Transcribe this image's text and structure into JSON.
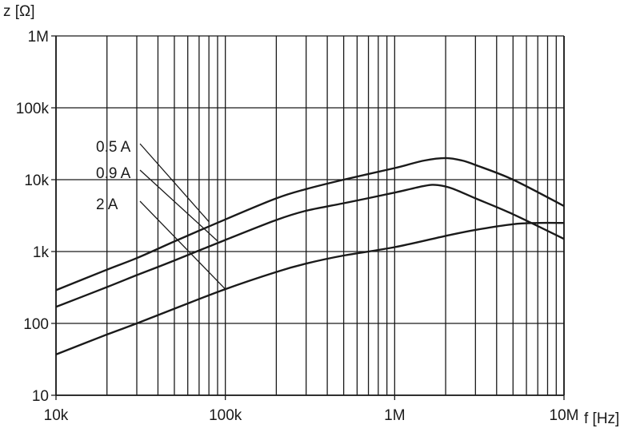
{
  "chart_data": {
    "type": "line",
    "x_scale": "log",
    "y_scale": "log",
    "xlabel": "f [Hz]",
    "ylabel": "z [Ω]",
    "xlim": [
      10000,
      10000000
    ],
    "ylim": [
      10,
      1000000
    ],
    "x_ticks": [
      {
        "value": 10000,
        "label": "10k"
      },
      {
        "value": 100000,
        "label": "100k"
      },
      {
        "value": 1000000,
        "label": "1M"
      },
      {
        "value": 10000000,
        "label": "10M"
      }
    ],
    "y_ticks": [
      {
        "value": 10,
        "label": "10"
      },
      {
        "value": 100,
        "label": "100"
      },
      {
        "value": 1000,
        "label": "1k"
      },
      {
        "value": 10000,
        "label": "10k"
      },
      {
        "value": 100000,
        "label": "100k"
      },
      {
        "value": 1000000,
        "label": "1M"
      }
    ],
    "grid": true,
    "series": [
      {
        "name": "0.5 A",
        "x": [
          10000,
          20000,
          30000,
          50000,
          100000,
          200000,
          300000,
          500000,
          1000000,
          1500000,
          2000000,
          2500000,
          3000000,
          5000000,
          10000000
        ],
        "y": [
          290,
          560,
          810,
          1380,
          2800,
          5500,
          7400,
          10000,
          14500,
          18500,
          20000,
          18500,
          16000,
          10000,
          4300
        ]
      },
      {
        "name": "0.9 A",
        "x": [
          10000,
          20000,
          30000,
          50000,
          100000,
          200000,
          300000,
          500000,
          1000000,
          1500000,
          1800000,
          2200000,
          3000000,
          5000000,
          10000000
        ],
        "y": [
          170,
          320,
          470,
          750,
          1450,
          2750,
          3700,
          4700,
          6600,
          8200,
          8400,
          7500,
          5500,
          3300,
          1500
        ]
      },
      {
        "name": "2 A",
        "x": [
          10000,
          20000,
          30000,
          50000,
          100000,
          200000,
          300000,
          500000,
          1000000,
          2000000,
          3000000,
          5000000,
          7000000,
          10000000
        ],
        "y": [
          37,
          70,
          100,
          160,
          300,
          520,
          680,
          880,
          1150,
          1650,
          2000,
          2400,
          2500,
          2500
        ]
      }
    ],
    "callouts": [
      {
        "label": "0.5 A",
        "target": [
          80000,
          2600
        ]
      },
      {
        "label": "0.9 A",
        "target": [
          90000,
          1400
        ]
      },
      {
        "label": "2 A",
        "target": [
          100000,
          300
        ]
      }
    ]
  }
}
